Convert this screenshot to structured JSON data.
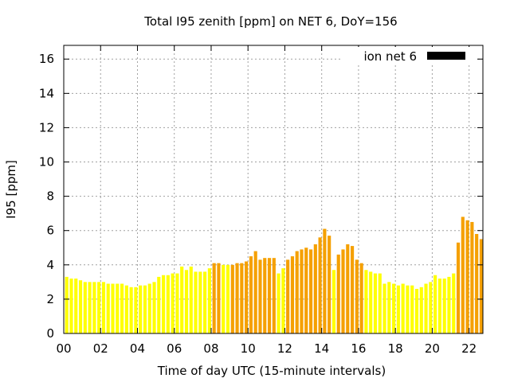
{
  "chart_data": {
    "type": "bar",
    "title": "Total I95 zenith [ppm] on NET 6, DoY=156",
    "xlabel": "Time of day UTC (15-minute intervals)",
    "ylabel": "I95 [ppm]",
    "xlim": [
      0,
      22.75
    ],
    "ylim": [
      0,
      16.8
    ],
    "x_ticks": [
      0,
      2,
      4,
      6,
      8,
      10,
      12,
      14,
      16,
      18,
      20,
      22
    ],
    "x_tick_labels": [
      "00",
      "02",
      "04",
      "06",
      "08",
      "10",
      "12",
      "14",
      "16",
      "18",
      "20",
      "22"
    ],
    "y_ticks": [
      0,
      2,
      4,
      6,
      8,
      10,
      12,
      14,
      16
    ],
    "y_tick_labels": [
      "0",
      "2",
      "4",
      "6",
      "8",
      "10",
      "12",
      "14",
      "16"
    ],
    "grid": true,
    "legend": {
      "position": "top-right",
      "label": "ion net 6",
      "color": "#000000"
    },
    "colors": {
      "low": "#ffff00",
      "high": "#f5a000"
    },
    "bar_width_hours": 0.18,
    "series": [
      {
        "values": [
          {
            "x": 0.25,
            "y": 3.3,
            "level": "low"
          },
          {
            "x": 0.5,
            "y": 3.2,
            "level": "low"
          },
          {
            "x": 0.75,
            "y": 3.2,
            "level": "low"
          },
          {
            "x": 1.0,
            "y": 3.1,
            "level": "low"
          },
          {
            "x": 1.25,
            "y": 3.0,
            "level": "low"
          },
          {
            "x": 1.5,
            "y": 3.0,
            "level": "low"
          },
          {
            "x": 1.75,
            "y": 3.0,
            "level": "low"
          },
          {
            "x": 2.0,
            "y": 3.0,
            "level": "low"
          },
          {
            "x": 2.25,
            "y": 3.0,
            "level": "low"
          },
          {
            "x": 2.5,
            "y": 2.9,
            "level": "low"
          },
          {
            "x": 2.75,
            "y": 2.9,
            "level": "low"
          },
          {
            "x": 3.0,
            "y": 2.9,
            "level": "low"
          },
          {
            "x": 3.25,
            "y": 2.9,
            "level": "low"
          },
          {
            "x": 3.5,
            "y": 2.8,
            "level": "low"
          },
          {
            "x": 3.75,
            "y": 2.7,
            "level": "low"
          },
          {
            "x": 4.0,
            "y": 2.7,
            "level": "low"
          },
          {
            "x": 4.25,
            "y": 2.8,
            "level": "low"
          },
          {
            "x": 4.5,
            "y": 2.8,
            "level": "low"
          },
          {
            "x": 4.75,
            "y": 2.9,
            "level": "low"
          },
          {
            "x": 5.0,
            "y": 3.0,
            "level": "low"
          },
          {
            "x": 5.25,
            "y": 3.3,
            "level": "low"
          },
          {
            "x": 5.5,
            "y": 3.4,
            "level": "low"
          },
          {
            "x": 5.75,
            "y": 3.4,
            "level": "low"
          },
          {
            "x": 6.0,
            "y": 3.5,
            "level": "low"
          },
          {
            "x": 6.25,
            "y": 3.5,
            "level": "low"
          },
          {
            "x": 6.5,
            "y": 3.9,
            "level": "low"
          },
          {
            "x": 6.75,
            "y": 3.7,
            "level": "low"
          },
          {
            "x": 7.0,
            "y": 3.9,
            "level": "low"
          },
          {
            "x": 7.25,
            "y": 3.6,
            "level": "low"
          },
          {
            "x": 7.5,
            "y": 3.6,
            "level": "low"
          },
          {
            "x": 7.75,
            "y": 3.6,
            "level": "low"
          },
          {
            "x": 8.0,
            "y": 3.8,
            "level": "low"
          },
          {
            "x": 8.25,
            "y": 4.1,
            "level": "high"
          },
          {
            "x": 8.5,
            "y": 4.1,
            "level": "high"
          },
          {
            "x": 8.75,
            "y": 4.0,
            "level": "low"
          },
          {
            "x": 9.0,
            "y": 4.0,
            "level": "low"
          },
          {
            "x": 9.25,
            "y": 4.0,
            "level": "high"
          },
          {
            "x": 9.5,
            "y": 4.1,
            "level": "high"
          },
          {
            "x": 9.75,
            "y": 4.1,
            "level": "high"
          },
          {
            "x": 10.0,
            "y": 4.2,
            "level": "high"
          },
          {
            "x": 10.25,
            "y": 4.5,
            "level": "high"
          },
          {
            "x": 10.5,
            "y": 4.8,
            "level": "high"
          },
          {
            "x": 10.75,
            "y": 4.3,
            "level": "high"
          },
          {
            "x": 11.0,
            "y": 4.4,
            "level": "high"
          },
          {
            "x": 11.25,
            "y": 4.4,
            "level": "high"
          },
          {
            "x": 11.5,
            "y": 4.4,
            "level": "high"
          },
          {
            "x": 11.75,
            "y": 3.5,
            "level": "low"
          },
          {
            "x": 12.0,
            "y": 3.8,
            "level": "low"
          },
          {
            "x": 12.25,
            "y": 4.3,
            "level": "high"
          },
          {
            "x": 12.5,
            "y": 4.5,
            "level": "high"
          },
          {
            "x": 12.75,
            "y": 4.8,
            "level": "high"
          },
          {
            "x": 13.0,
            "y": 4.9,
            "level": "high"
          },
          {
            "x": 13.25,
            "y": 5.0,
            "level": "high"
          },
          {
            "x": 13.5,
            "y": 4.9,
            "level": "high"
          },
          {
            "x": 13.75,
            "y": 5.2,
            "level": "high"
          },
          {
            "x": 14.0,
            "y": 5.6,
            "level": "high"
          },
          {
            "x": 14.25,
            "y": 6.1,
            "level": "high"
          },
          {
            "x": 14.5,
            "y": 5.7,
            "level": "high"
          },
          {
            "x": 14.75,
            "y": 3.7,
            "level": "low"
          },
          {
            "x": 15.0,
            "y": 4.6,
            "level": "high"
          },
          {
            "x": 15.25,
            "y": 4.9,
            "level": "high"
          },
          {
            "x": 15.5,
            "y": 5.2,
            "level": "high"
          },
          {
            "x": 15.75,
            "y": 5.1,
            "level": "high"
          },
          {
            "x": 16.0,
            "y": 4.3,
            "level": "high"
          },
          {
            "x": 16.25,
            "y": 4.1,
            "level": "high"
          },
          {
            "x": 16.5,
            "y": 3.7,
            "level": "low"
          },
          {
            "x": 16.75,
            "y": 3.6,
            "level": "low"
          },
          {
            "x": 17.0,
            "y": 3.5,
            "level": "low"
          },
          {
            "x": 17.25,
            "y": 3.5,
            "level": "low"
          },
          {
            "x": 17.5,
            "y": 2.9,
            "level": "low"
          },
          {
            "x": 17.75,
            "y": 3.0,
            "level": "low"
          },
          {
            "x": 18.0,
            "y": 2.9,
            "level": "low"
          },
          {
            "x": 18.25,
            "y": 2.8,
            "level": "low"
          },
          {
            "x": 18.5,
            "y": 2.9,
            "level": "low"
          },
          {
            "x": 18.75,
            "y": 2.8,
            "level": "low"
          },
          {
            "x": 19.0,
            "y": 2.8,
            "level": "low"
          },
          {
            "x": 19.25,
            "y": 2.6,
            "level": "low"
          },
          {
            "x": 19.5,
            "y": 2.7,
            "level": "low"
          },
          {
            "x": 19.75,
            "y": 2.9,
            "level": "low"
          },
          {
            "x": 20.0,
            "y": 3.0,
            "level": "low"
          },
          {
            "x": 20.25,
            "y": 3.4,
            "level": "low"
          },
          {
            "x": 20.5,
            "y": 3.2,
            "level": "low"
          },
          {
            "x": 20.75,
            "y": 3.2,
            "level": "low"
          },
          {
            "x": 21.0,
            "y": 3.3,
            "level": "low"
          },
          {
            "x": 21.25,
            "y": 3.5,
            "level": "low"
          },
          {
            "x": 21.5,
            "y": 5.3,
            "level": "high"
          },
          {
            "x": 21.75,
            "y": 6.8,
            "level": "high"
          },
          {
            "x": 22.0,
            "y": 6.6,
            "level": "high"
          },
          {
            "x": 22.25,
            "y": 6.5,
            "level": "high"
          },
          {
            "x": 22.5,
            "y": 5.8,
            "level": "high"
          },
          {
            "x": 22.75,
            "y": 5.5,
            "level": "high"
          }
        ]
      }
    ]
  }
}
